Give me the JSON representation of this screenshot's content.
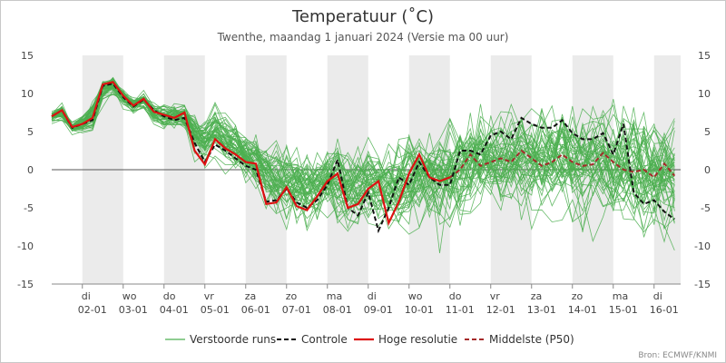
{
  "chart_data": {
    "type": "line",
    "title": "Temperatuur (˚C)",
    "subtitle": "Twenthe, maandag 1 januari 2024 (Versie ma 00 uur)",
    "credit": "Bron: ECMWF/KNMI",
    "ylim": [
      -15,
      15
    ],
    "yticks": [
      15,
      10,
      5,
      0,
      -5,
      -10,
      -15
    ],
    "xlim": [
      0,
      15.4
    ],
    "x_unit_note": "x = dagen vanaf 1 januari 2024 00 uur",
    "day_ticks": [
      {
        "x": 0.75,
        "weekday": "di",
        "date": "02-01"
      },
      {
        "x": 1.75,
        "weekday": "wo",
        "date": "03-01"
      },
      {
        "x": 2.75,
        "weekday": "do",
        "date": "04-01"
      },
      {
        "x": 3.75,
        "weekday": "vr",
        "date": "05-01"
      },
      {
        "x": 4.75,
        "weekday": "za",
        "date": "06-01"
      },
      {
        "x": 5.75,
        "weekday": "zo",
        "date": "07-01"
      },
      {
        "x": 6.75,
        "weekday": "ma",
        "date": "08-01"
      },
      {
        "x": 7.75,
        "weekday": "di",
        "date": "09-01"
      },
      {
        "x": 8.75,
        "weekday": "wo",
        "date": "10-01"
      },
      {
        "x": 9.75,
        "weekday": "do",
        "date": "11-01"
      },
      {
        "x": 10.75,
        "weekday": "vr",
        "date": "12-01"
      },
      {
        "x": 11.75,
        "weekday": "za",
        "date": "13-01"
      },
      {
        "x": 12.75,
        "weekday": "zo",
        "date": "14-01"
      },
      {
        "x": 13.75,
        "weekday": "ma",
        "date": "15-01"
      },
      {
        "x": 14.75,
        "weekday": "di",
        "date": "16-01"
      }
    ],
    "shaded_days": [
      [
        0.75,
        1.75
      ],
      [
        2.75,
        3.75
      ],
      [
        4.75,
        5.75
      ],
      [
        6.75,
        7.75
      ],
      [
        8.75,
        9.75
      ],
      [
        10.75,
        11.75
      ],
      [
        12.75,
        13.75
      ],
      [
        14.75,
        15.4
      ]
    ],
    "legend": [
      "Verstoorde runs",
      "Controle",
      "Hoge resolutie",
      "Middelste (P50)"
    ],
    "colors": {
      "perturbed": "#4caf50",
      "control": "#111111",
      "hires": "#dd1111",
      "median": "#a52a2a",
      "shade": "#ebebeb",
      "zero_line": "#555555"
    },
    "series": {
      "control": {
        "x": [
          0,
          0.25,
          0.5,
          0.75,
          1,
          1.25,
          1.5,
          1.75,
          2,
          2.25,
          2.5,
          2.75,
          3,
          3.25,
          3.5,
          3.75,
          4,
          4.25,
          4.5,
          4.75,
          5,
          5.25,
          5.5,
          5.75,
          6,
          6.25,
          6.5,
          6.75,
          7,
          7.25,
          7.5,
          7.75,
          8,
          8.25,
          8.5,
          8.75,
          9,
          9.25,
          9.5,
          9.75,
          10,
          10.25,
          10.5,
          10.75,
          11,
          11.25,
          11.5,
          11.75,
          12,
          12.25,
          12.5,
          12.75,
          13,
          13.25,
          13.5,
          13.75,
          14,
          14.25,
          14.5,
          14.75,
          15,
          15.25
        ],
        "values": [
          7.0,
          7.8,
          5.5,
          6.0,
          6.5,
          11.0,
          11.3,
          9.5,
          8.3,
          9.2,
          7.8,
          7.0,
          6.5,
          6.8,
          3.5,
          1.0,
          3.3,
          2.5,
          1.5,
          0.5,
          0.0,
          -4.2,
          -4.0,
          -2.5,
          -4.3,
          -5.0,
          -4.0,
          -2.0,
          1.3,
          -5.0,
          -6.0,
          -3.0,
          -8.0,
          -5.0,
          -1.0,
          -2.0,
          1.0,
          -1.0,
          -2.0,
          -2.0,
          2.5,
          2.5,
          2.0,
          4.5,
          5.0,
          4.0,
          6.8,
          6.0,
          5.5,
          5.5,
          6.5,
          4.8,
          4.0,
          4.0,
          4.8,
          2.0,
          6.0,
          -3.0,
          -4.5,
          -4.0,
          -5.5,
          -6.5
        ]
      },
      "hires": {
        "x": [
          0,
          0.25,
          0.5,
          0.75,
          1,
          1.25,
          1.5,
          1.75,
          2,
          2.25,
          2.5,
          2.75,
          3,
          3.25,
          3.5,
          3.75,
          4,
          4.25,
          4.5,
          4.75,
          5,
          5.25,
          5.5,
          5.75,
          6,
          6.25,
          6.5,
          6.75,
          7,
          7.25,
          7.5,
          7.75,
          8,
          8.25,
          8.5,
          8.75,
          9,
          9.25,
          9.5,
          9.75
        ],
        "values": [
          7.0,
          7.8,
          5.6,
          6.0,
          6.8,
          11.2,
          11.5,
          9.7,
          8.4,
          9.3,
          7.6,
          7.2,
          6.8,
          7.5,
          2.5,
          0.7,
          4.0,
          2.8,
          2.0,
          1.0,
          0.8,
          -4.5,
          -4.3,
          -2.3,
          -4.8,
          -5.3,
          -3.5,
          -1.5,
          -0.5,
          -5.0,
          -4.5,
          -2.5,
          -1.5,
          -7.0,
          -4.2,
          -0.5,
          2.0,
          -1.0,
          -1.5,
          -1.0
        ]
      },
      "median": {
        "x": [
          9.75,
          10,
          10.25,
          10.5,
          10.75,
          11,
          11.25,
          11.5,
          11.75,
          12,
          12.25,
          12.5,
          12.75,
          13,
          13.25,
          13.5,
          13.75,
          14,
          14.25,
          14.5,
          14.75,
          15,
          15.25
        ],
        "values": [
          -1.0,
          0.0,
          2.0,
          0.5,
          1.0,
          1.5,
          1.0,
          2.5,
          1.5,
          0.5,
          1.0,
          2.0,
          1.0,
          0.5,
          0.7,
          2.2,
          1.0,
          0.0,
          -0.3,
          0.0,
          -1.0,
          0.8,
          -0.8
        ]
      },
      "ensemble_summary": {
        "x": [
          0,
          0.25,
          0.5,
          0.75,
          1,
          1.25,
          1.5,
          1.75,
          2,
          2.25,
          2.5,
          2.75,
          3,
          3.25,
          3.5,
          3.75,
          4,
          4.25,
          4.5,
          4.75,
          5,
          5.25,
          5.5,
          5.75,
          6,
          6.25,
          6.5,
          6.75,
          7,
          7.25,
          7.5,
          7.75,
          8,
          8.25,
          8.5,
          8.75,
          9,
          9.25,
          9.5,
          9.75,
          10,
          10.25,
          10.5,
          10.75,
          11,
          11.25,
          11.5,
          11.75,
          12,
          12.25,
          12.5,
          12.75,
          13,
          13.25,
          13.5,
          13.75,
          14,
          14.25,
          14.5,
          14.75,
          15,
          15.25
        ],
        "center": [
          7.0,
          7.5,
          5.6,
          6.0,
          7.5,
          10.5,
          11.0,
          9.5,
          8.5,
          9.0,
          7.5,
          7.0,
          7.0,
          7.0,
          5.0,
          4.0,
          5.0,
          4.0,
          3.0,
          2.0,
          1.0,
          -1.0,
          -1.5,
          -1.5,
          -2.0,
          -2.5,
          -2.0,
          -1.5,
          -1.5,
          -2.5,
          -2.5,
          -2.0,
          -2.0,
          -2.5,
          -2.0,
          -1.5,
          -1.0,
          -1.0,
          -1.0,
          -1.0,
          0.0,
          0.5,
          0.8,
          0.8,
          1.0,
          1.0,
          1.2,
          1.2,
          1.2,
          1.0,
          1.2,
          1.0,
          0.8,
          0.8,
          1.0,
          0.5,
          0.2,
          0.0,
          -0.2,
          -0.2,
          -0.3,
          -0.5
        ],
        "spread": [
          0.5,
          0.7,
          0.5,
          0.8,
          1.5,
          1.0,
          0.8,
          0.8,
          0.7,
          0.7,
          0.8,
          1.0,
          1.2,
          1.5,
          1.8,
          2.0,
          2.2,
          2.3,
          2.5,
          2.5,
          2.8,
          3.0,
          3.0,
          3.0,
          3.0,
          3.0,
          3.0,
          3.0,
          3.3,
          3.5,
          3.5,
          3.5,
          3.5,
          3.8,
          3.8,
          4.0,
          4.0,
          4.0,
          4.0,
          4.2,
          4.2,
          4.2,
          4.3,
          4.3,
          4.3,
          4.5,
          4.5,
          4.5,
          4.5,
          4.6,
          4.6,
          4.7,
          4.7,
          4.8,
          4.8,
          5.0,
          5.0,
          5.0,
          5.2,
          5.2,
          5.3,
          5.3
        ],
        "member_count": 50
      }
    }
  }
}
